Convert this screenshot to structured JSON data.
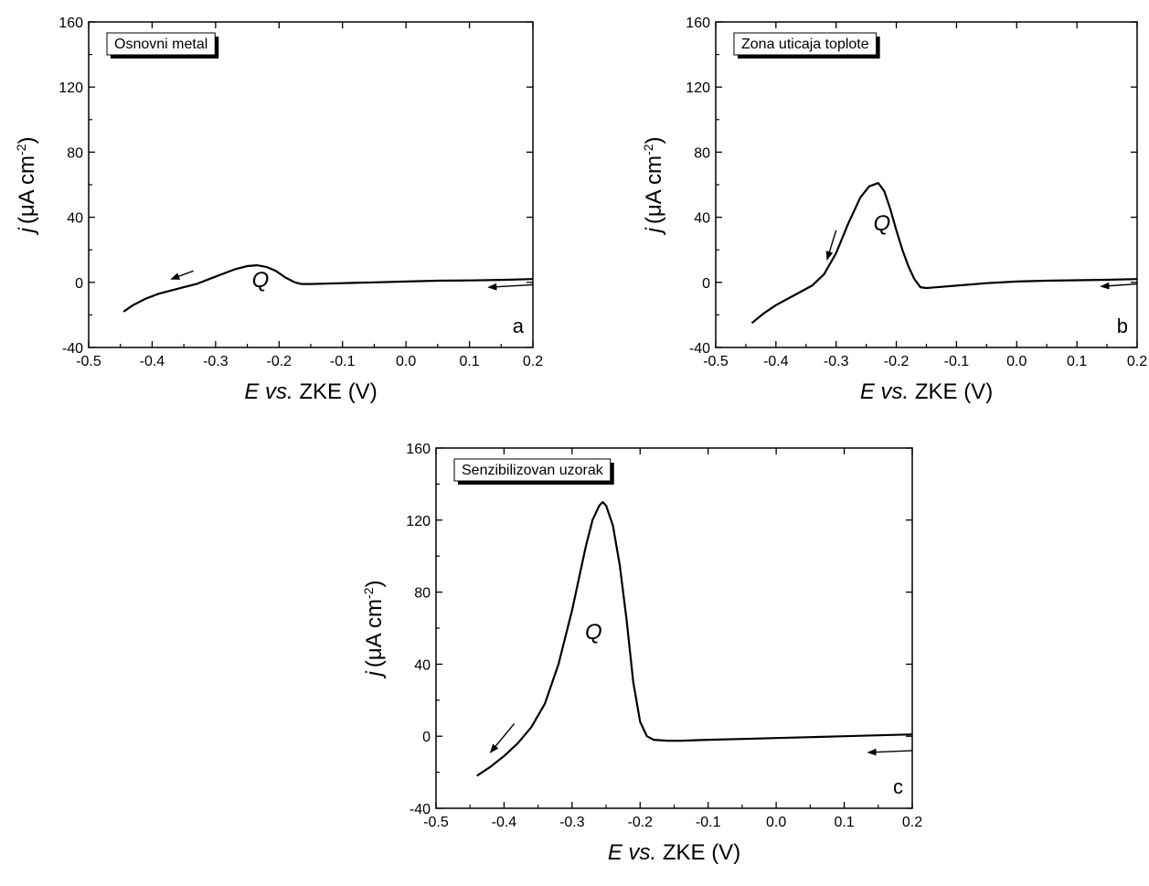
{
  "chart_data": [
    {
      "type": "line",
      "panel": "a",
      "legend": "Osnovni metal",
      "peak_label": "Q",
      "xlabel": {
        "italic": "E",
        "italic2": "vs.",
        "rest": "ZKE (V)"
      },
      "ylabel": {
        "italic": "j",
        "rest": "(μA cm",
        "sup": "-2",
        "close": ")"
      },
      "xlim": [
        -0.5,
        0.2
      ],
      "ylim": [
        -40,
        160
      ],
      "xticks": [
        "-0.5",
        "-0.4",
        "-0.3",
        "-0.2",
        "-0.1",
        "0.0",
        "0.1",
        "0.2"
      ],
      "yticks": [
        "-40",
        "0",
        "40",
        "80",
        "120",
        "160"
      ],
      "series": [
        {
          "x": [
            -0.445,
            -0.43,
            -0.41,
            -0.39,
            -0.37,
            -0.35,
            -0.33,
            -0.31,
            -0.29,
            -0.27,
            -0.25,
            -0.235,
            -0.22,
            -0.205,
            -0.19,
            -0.175,
            -0.165,
            -0.15,
            -0.1,
            -0.05,
            0.0,
            0.05,
            0.1,
            0.15,
            0.2
          ],
          "y": [
            -18,
            -14,
            -10,
            -7,
            -5,
            -3,
            -1,
            2,
            5,
            8,
            10,
            10.5,
            9.5,
            7,
            3,
            0,
            -1,
            -1,
            -0.5,
            0,
            0.5,
            1,
            1.2,
            1.5,
            2
          ]
        }
      ],
      "sweep_arrows": [
        {
          "from": [
            -0.335,
            7
          ],
          "to": [
            -0.37,
            2
          ]
        },
        {
          "from": [
            0.2,
            -1.5
          ],
          "to": [
            0.13,
            -3
          ]
        }
      ]
    },
    {
      "type": "line",
      "panel": "b",
      "legend": "Zona uticaja toplote",
      "peak_label": "Q",
      "xlabel": {
        "italic": "E",
        "italic2": "vs.",
        "rest": "ZKE (V)"
      },
      "ylabel": {
        "italic": "j",
        "rest": "(μA cm",
        "sup": "-2",
        "close": ")"
      },
      "xlim": [
        -0.5,
        0.2
      ],
      "ylim": [
        -40,
        160
      ],
      "xticks": [
        "-0.5",
        "-0.4",
        "-0.3",
        "-0.2",
        "-0.1",
        "0.0",
        "0.1",
        "0.2"
      ],
      "yticks": [
        "-40",
        "0",
        "40",
        "80",
        "120",
        "160"
      ],
      "series": [
        {
          "x": [
            -0.44,
            -0.42,
            -0.4,
            -0.38,
            -0.36,
            -0.34,
            -0.32,
            -0.3,
            -0.28,
            -0.26,
            -0.245,
            -0.23,
            -0.22,
            -0.21,
            -0.2,
            -0.19,
            -0.18,
            -0.17,
            -0.16,
            -0.15,
            -0.1,
            -0.05,
            0.0,
            0.05,
            0.1,
            0.15,
            0.2
          ],
          "y": [
            -25,
            -19,
            -14,
            -10,
            -6,
            -2,
            5,
            18,
            36,
            52,
            59,
            61,
            56,
            45,
            32,
            20,
            10,
            2,
            -3,
            -3.5,
            -2,
            -0.5,
            0.5,
            1,
            1.3,
            1.6,
            2
          ]
        }
      ],
      "sweep_arrows": [
        {
          "from": [
            -0.3,
            32
          ],
          "to": [
            -0.315,
            14
          ]
        },
        {
          "from": [
            0.2,
            -1
          ],
          "to": [
            0.14,
            -2.5
          ]
        }
      ]
    },
    {
      "type": "line",
      "panel": "c",
      "legend": "Senzibilizovan uzorak",
      "peak_label": "Q",
      "xlabel": {
        "italic": "E",
        "italic2": "vs.",
        "rest": "ZKE (V)"
      },
      "ylabel": {
        "italic": "j",
        "rest": "(μA cm",
        "sup": "-2",
        "close": ")"
      },
      "xlim": [
        -0.5,
        0.2
      ],
      "ylim": [
        -40,
        160
      ],
      "xticks": [
        "-0.5",
        "-0.4",
        "-0.3",
        "-0.2",
        "-0.1",
        "0.0",
        "0.1",
        "0.2"
      ],
      "yticks": [
        "-40",
        "0",
        "40",
        "80",
        "120",
        "160"
      ],
      "series": [
        {
          "x": [
            -0.44,
            -0.42,
            -0.4,
            -0.38,
            -0.36,
            -0.34,
            -0.32,
            -0.3,
            -0.28,
            -0.27,
            -0.26,
            -0.255,
            -0.25,
            -0.24,
            -0.23,
            -0.22,
            -0.21,
            -0.2,
            -0.19,
            -0.18,
            -0.16,
            -0.14,
            -0.1,
            -0.05,
            0.0,
            0.05,
            0.1,
            0.15,
            0.2
          ],
          "y": [
            -22,
            -17,
            -11,
            -4,
            5,
            18,
            40,
            70,
            105,
            120,
            128,
            130,
            128,
            117,
            95,
            65,
            30,
            8,
            0,
            -2,
            -2.5,
            -2.5,
            -2,
            -1.5,
            -1,
            -0.5,
            0,
            0.5,
            1
          ]
        }
      ],
      "sweep_arrows": [
        {
          "from": [
            -0.385,
            7
          ],
          "to": [
            -0.42,
            -9
          ]
        },
        {
          "from": [
            0.2,
            -8
          ],
          "to": [
            0.135,
            -9
          ]
        }
      ]
    }
  ]
}
